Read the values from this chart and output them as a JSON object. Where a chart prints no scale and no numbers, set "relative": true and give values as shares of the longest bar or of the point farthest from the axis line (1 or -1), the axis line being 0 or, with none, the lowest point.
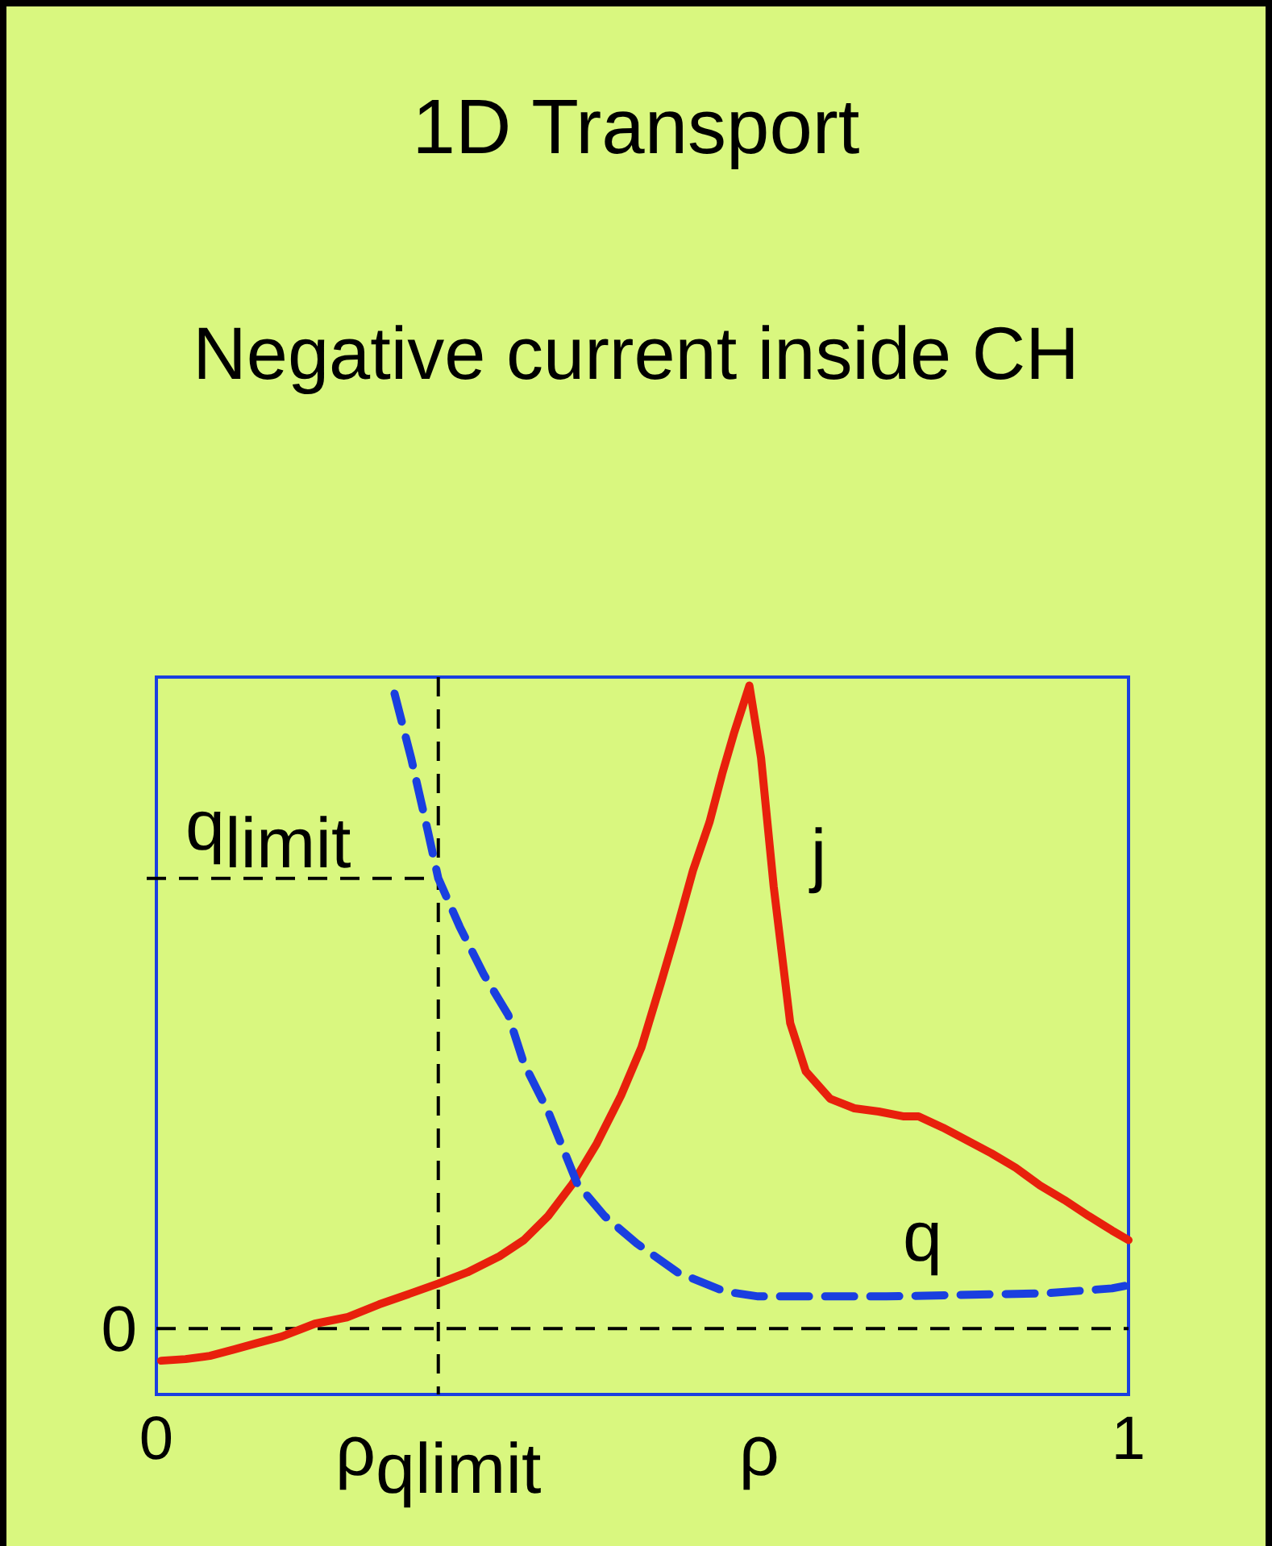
{
  "chart_data": {
    "type": "line",
    "title": "1D Transport",
    "subtitle": "Negative current inside CH",
    "xlabel": "ρ",
    "relative": true,
    "xlim": [
      0,
      1
    ],
    "xticks": [
      0,
      1
    ],
    "series": [
      {
        "name": "j",
        "color": "#e8200c",
        "line_style": "solid",
        "x": [
          0.005,
          0.03,
          0.055,
          0.08,
          0.104,
          0.129,
          0.163,
          0.196,
          0.229,
          0.262,
          0.29,
          0.32,
          0.353,
          0.378,
          0.403,
          0.428,
          0.453,
          0.478,
          0.499,
          0.519,
          0.536,
          0.552,
          0.569,
          0.582,
          0.594,
          0.61,
          0.622,
          0.635,
          0.652,
          0.668,
          0.693,
          0.718,
          0.743,
          0.768,
          0.784,
          0.809,
          0.834,
          0.859,
          0.884,
          0.909,
          0.934,
          0.959,
          0.983,
          1.0
        ],
        "values": [
          -0.05,
          -0.0475,
          -0.0425,
          -0.0325,
          -0.0225,
          -0.0125,
          0.0075,
          0.0175,
          0.0375,
          0.055,
          0.07,
          0.0875,
          0.1125,
          0.1375,
          0.175,
          0.225,
          0.2875,
          0.3625,
          0.4375,
          0.5375,
          0.625,
          0.7125,
          0.7875,
          0.8625,
          0.925,
          1.0,
          0.8875,
          0.6875,
          0.475,
          0.4,
          0.3575,
          0.3425,
          0.3375,
          0.33,
          0.33,
          0.3125,
          0.2925,
          0.2725,
          0.25,
          0.2225,
          0.2,
          0.175,
          0.1525,
          0.1375
        ]
      },
      {
        "name": "q",
        "color": "#1a3fe0",
        "line_style": "dashed",
        "x": [
          0.245,
          0.262,
          0.279,
          0.29,
          0.312,
          0.337,
          0.362,
          0.378,
          0.403,
          0.433,
          0.461,
          0.494,
          0.536,
          0.585,
          0.619,
          0.751,
          0.917,
          0.983,
          1.0
        ],
        "values": [
          0.9875,
          0.8875,
          0.775,
          0.7,
          0.625,
          0.55,
          0.4875,
          0.4125,
          0.3375,
          0.225,
          0.175,
          0.1325,
          0.0875,
          0.0575,
          0.05,
          0.05,
          0.055,
          0.0625,
          0.0675
        ]
      }
    ],
    "ref_lines": [
      {
        "axis": "y",
        "value": 0,
        "label": "0",
        "color": "#000000",
        "line_style": "dashed"
      },
      {
        "axis": "x",
        "value": 0.29,
        "label": "ρ$_{qlimit}$",
        "color": "#000000",
        "line_style": "dashed"
      },
      {
        "axis": "y",
        "value": 0.7,
        "label": "q$_{limit}$",
        "color": "#000000",
        "line_style": "dashed"
      }
    ]
  }
}
